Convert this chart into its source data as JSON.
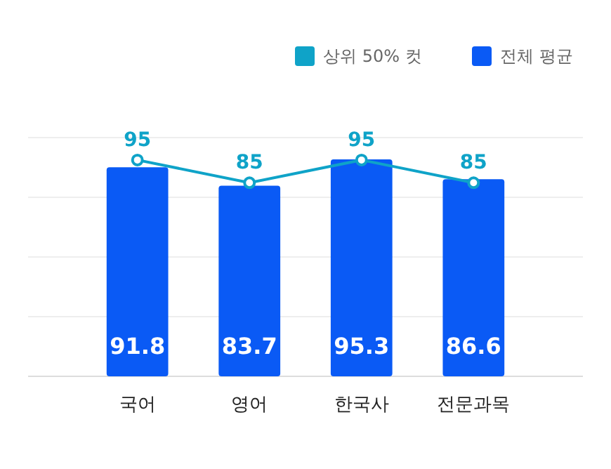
{
  "chart_data": {
    "type": "bar",
    "categories": [
      "국어",
      "영어",
      "한국사",
      "전문과목"
    ],
    "series": [
      {
        "name": "상위 50% 컷",
        "type": "line",
        "color": "#0fa3c8",
        "values": [
          95,
          85,
          95,
          85
        ]
      },
      {
        "name": "전체 평균",
        "color": "#0a5af5",
        "values": [
          91.8,
          83.7,
          95.3,
          86.6
        ]
      }
    ],
    "data_labels": true,
    "grid": "y",
    "legend": "top right",
    "marker": "circle",
    "line_style": "solid"
  }
}
